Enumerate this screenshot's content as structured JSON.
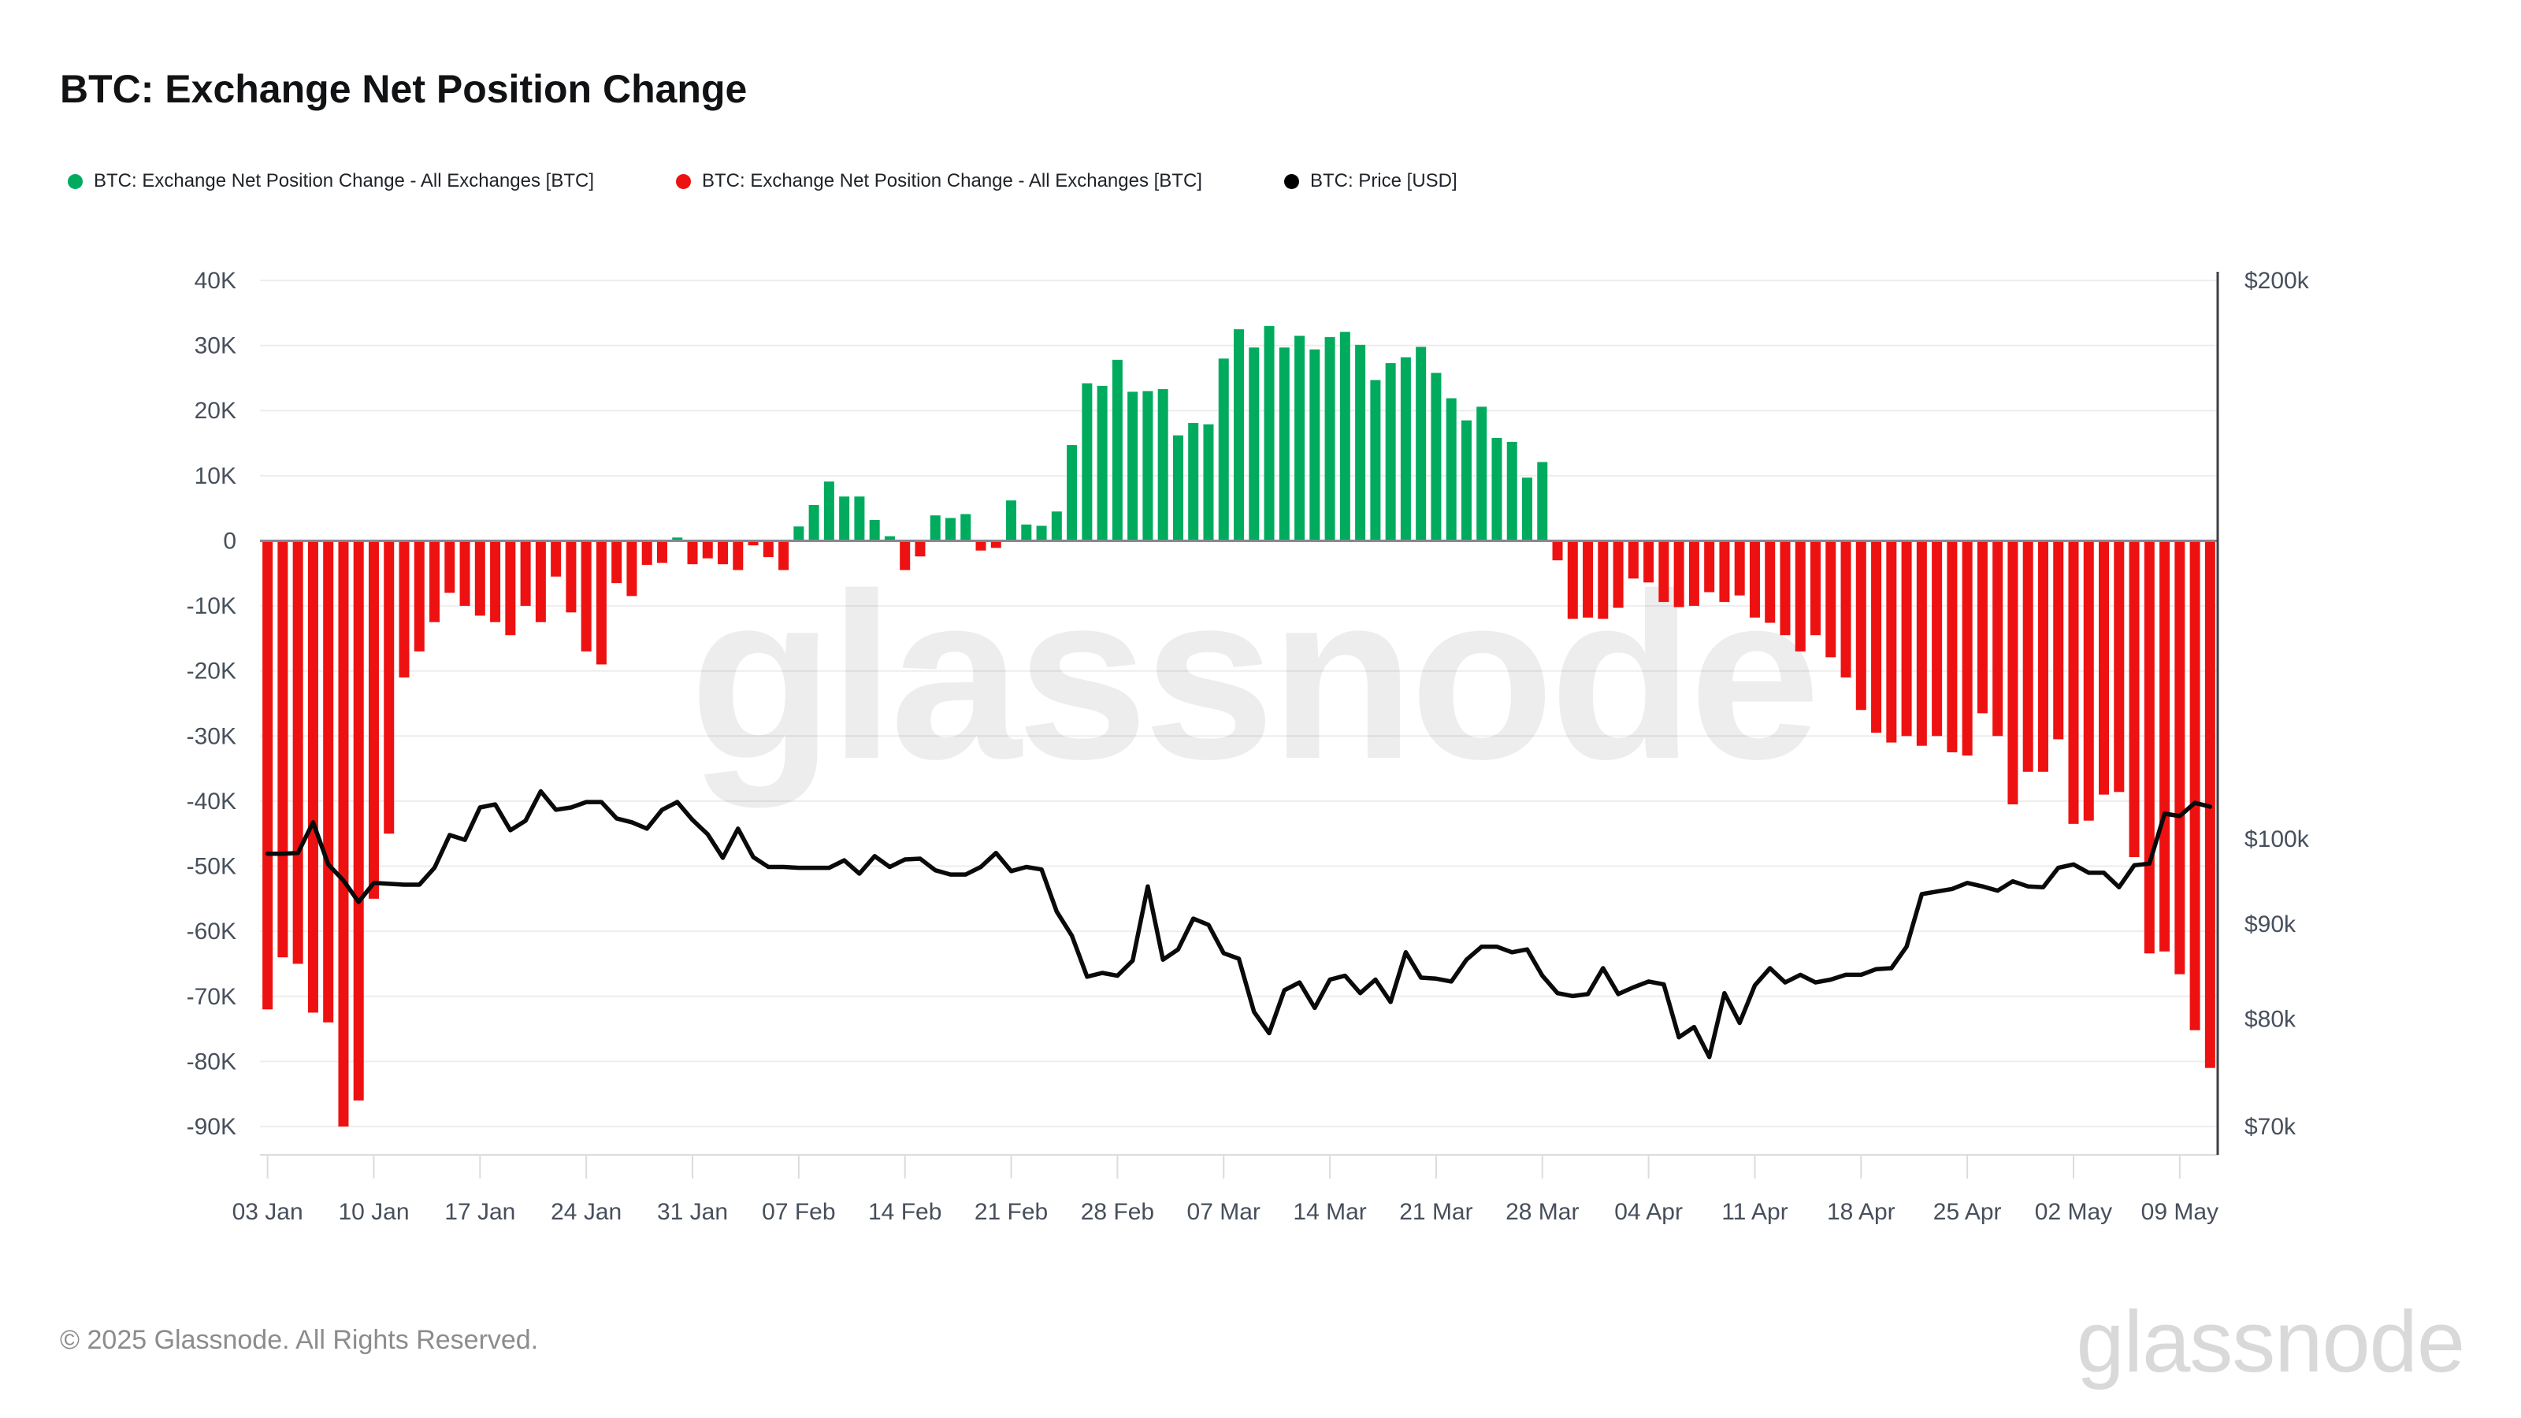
{
  "header": {
    "title": "BTC: Exchange Net Position Change"
  },
  "legend": [
    {
      "label": "BTC: Exchange Net Position Change - All Exchanges [BTC]",
      "color": "#00ab5e"
    },
    {
      "label": "BTC: Exchange Net Position Change - All Exchanges [BTC]",
      "color": "#ee1111"
    },
    {
      "label": "BTC: Price [USD]",
      "color": "#000000"
    }
  ],
  "footer": {
    "copyright": "© 2025 Glassnode. All Rights Reserved.",
    "brand": "glassnode"
  },
  "watermark": "glassnode",
  "colors": {
    "positive": "#00ab5e",
    "negative": "#ee1111",
    "price_line": "#0a0a0a",
    "gridline": "#ededed",
    "zero_line": "#85888f",
    "right_axis_line": "#3c3f45",
    "bottom_axis_line": "#dcdcdc",
    "axis_text": "#474f5c"
  },
  "chart_data": {
    "type": "bar+line",
    "title": "BTC: Exchange Net Position Change",
    "x_axis": {
      "n_points": 129,
      "tick_indices": [
        0,
        7,
        14,
        21,
        28,
        35,
        42,
        49,
        56,
        63,
        70,
        77,
        84,
        91,
        98,
        105,
        112,
        119,
        126
      ],
      "tick_labels": [
        "03 Jan",
        "10 Jan",
        "17 Jan",
        "24 Jan",
        "31 Jan",
        "07 Feb",
        "14 Feb",
        "21 Feb",
        "28 Feb",
        "07 Mar",
        "14 Mar",
        "21 Mar",
        "28 Mar",
        "04 Apr",
        "11 Apr",
        "18 Apr",
        "25 Apr",
        "02 May",
        "09 May"
      ]
    },
    "left_axis": {
      "unit": "BTC (thousands)",
      "max_k": 40,
      "min_k": -90,
      "ticks": [
        {
          "v": 40,
          "label": "40K"
        },
        {
          "v": 30,
          "label": "30K"
        },
        {
          "v": 20,
          "label": "20K"
        },
        {
          "v": 10,
          "label": "10K"
        },
        {
          "v": 0,
          "label": "0"
        },
        {
          "v": -10,
          "label": "-10K"
        },
        {
          "v": -20,
          "label": "-20K"
        },
        {
          "v": -30,
          "label": "-30K"
        },
        {
          "v": -40,
          "label": "-40K"
        },
        {
          "v": -50,
          "label": "-50K"
        },
        {
          "v": -60,
          "label": "-60K"
        },
        {
          "v": -70,
          "label": "-70K"
        },
        {
          "v": -80,
          "label": "-80K"
        },
        {
          "v": -90,
          "label": "-90K"
        }
      ]
    },
    "right_axis": {
      "unit": "USD (thousands)",
      "scale": "log",
      "max_k": 200,
      "min_k": 70,
      "ticks": [
        {
          "v": 200,
          "label": "$200k"
        },
        {
          "v": 100,
          "label": "$100k"
        },
        {
          "v": 90,
          "label": "$90k"
        },
        {
          "v": 80,
          "label": "$80k"
        },
        {
          "v": 70,
          "label": "$70k"
        }
      ]
    },
    "grid": true,
    "legend_position": "top",
    "series": [
      {
        "name": "BTC: Exchange Net Position Change - All Exchanges [BTC]",
        "type": "bar",
        "unit_k": "thousand BTC per day",
        "values": [
          -72,
          -64,
          -65,
          -72.5,
          -74,
          -90,
          -86,
          -55,
          -45,
          -21,
          -17,
          -12.5,
          -8,
          -10,
          -11.5,
          -12.5,
          -14.5,
          -10,
          -12.5,
          -5.5,
          -11,
          -17,
          -19,
          -6.5,
          -8.5,
          -3.7,
          -3.4,
          0.5,
          -3.6,
          -2.7,
          -3.6,
          -4.5,
          -0.7,
          -2.5,
          -4.5,
          2.2,
          5.5,
          9.1,
          6.8,
          6.8,
          3.2,
          0.7,
          -4.5,
          -2.4,
          3.9,
          3.5,
          4.1,
          -1.5,
          -1.1,
          6.2,
          2.5,
          2.3,
          4.5,
          14.7,
          24.2,
          23.8,
          27.8,
          22.9,
          23,
          23.3,
          16.2,
          18.1,
          17.9,
          28,
          32.5,
          29.7,
          33,
          29.7,
          31.5,
          29.4,
          31.3,
          32.1,
          30.1,
          24.7,
          27.3,
          28.2,
          29.8,
          25.8,
          21.9,
          18.5,
          20.6,
          15.8,
          15.2,
          9.7,
          12.1,
          -3,
          -12,
          -11.8,
          -12,
          -10.3,
          -5.8,
          -6.4,
          -9.4,
          -10.2,
          -10,
          -7.9,
          -9.4,
          -8.4,
          -11.8,
          -12.6,
          -14.5,
          -17,
          -14.5,
          -17.9,
          -21,
          -26,
          -29.5,
          -31,
          -30,
          -31.5,
          -30,
          -32.5,
          -33,
          -26.5,
          -30,
          -40.5,
          -35.5,
          -35.5,
          -30.5,
          -43.5,
          -43,
          -39,
          -38.6,
          -48.6,
          -63.4,
          -63.1,
          -66.6,
          -75.2,
          -81
        ]
      },
      {
        "name": "BTC: Price [USD]",
        "type": "line",
        "unit_k": "thousand USD",
        "values_k": [
          98.2,
          98.2,
          98.3,
          102.1,
          96.9,
          95,
          92.5,
          94.7,
          94.6,
          94.5,
          94.5,
          96.5,
          100.5,
          99.9,
          104,
          104.4,
          101.1,
          102.3,
          106.1,
          103.7,
          104,
          104.7,
          104.7,
          102.6,
          102.1,
          101.3,
          103.7,
          104.7,
          102.4,
          100.6,
          97.7,
          101.3,
          97.8,
          96.6,
          96.6,
          96.5,
          96.5,
          96.5,
          97.4,
          95.8,
          97.9,
          96.6,
          97.5,
          97.6,
          96.2,
          95.7,
          95.7,
          96.6,
          98.3,
          96.1,
          96.6,
          96.3,
          91.4,
          88.7,
          84.3,
          84.7,
          84.4,
          86,
          94.3,
          86.1,
          87.2,
          90.6,
          89.9,
          86.8,
          86.2,
          80.7,
          78.6,
          82.9,
          83.7,
          81.1,
          84,
          84.4,
          82.6,
          84,
          81.7,
          86.9,
          84.2,
          84.1,
          83.8,
          86.1,
          87.5,
          87.5,
          86.9,
          87.2,
          84.4,
          82.6,
          82.3,
          82.5,
          85.2,
          82.5,
          83.2,
          83.8,
          83.5,
          78.2,
          79.2,
          76.3,
          82.6,
          79.6,
          83.4,
          85.2,
          83.7,
          84.5,
          83.7,
          84,
          84.5,
          84.5,
          85.1,
          85.2,
          87.5,
          93.4,
          93.7,
          94,
          94.7,
          94.3,
          93.8,
          94.9,
          94.3,
          94.2,
          96.5,
          96.9,
          95.9,
          95.9,
          94.2,
          96.8,
          97,
          103.2,
          102.9,
          104.6,
          104.1
        ]
      }
    ]
  }
}
